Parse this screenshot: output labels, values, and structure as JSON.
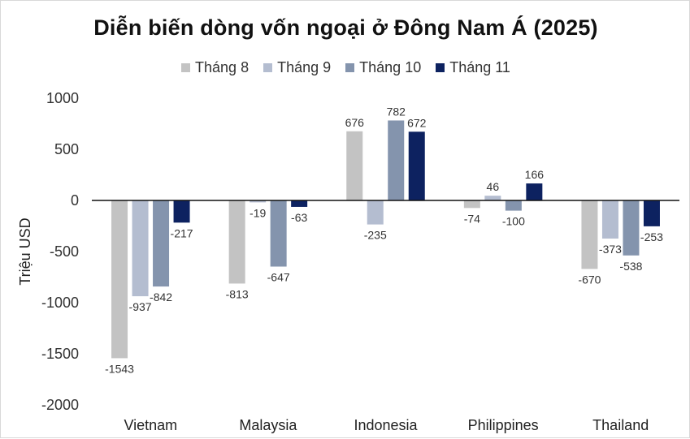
{
  "chart_data": {
    "type": "bar",
    "title": "Diễn biến dòng vốn ngoại ở Đông Nam Á (2025)",
    "ylabel": "Triệu USD",
    "xlabel": "",
    "categories": [
      "Vietnam",
      "Malaysia",
      "Indonesia",
      "Philippines",
      "Thailand"
    ],
    "series": [
      {
        "name": "Tháng 8",
        "color": "#c3c3c3",
        "values": [
          -1543,
          -813,
          676,
          -74,
          -670
        ]
      },
      {
        "name": "Tháng 9",
        "color": "#b4bdd0",
        "values": [
          -937,
          -19,
          -235,
          46,
          -373
        ]
      },
      {
        "name": "Tháng 10",
        "color": "#8494ad",
        "values": [
          -842,
          -647,
          782,
          -100,
          -538
        ]
      },
      {
        "name": "Tháng 11",
        "color": "#0d2260",
        "values": [
          -217,
          -63,
          672,
          166,
          -253
        ]
      }
    ],
    "ylim": [
      -2000,
      1000
    ],
    "yticks": [
      "1000",
      "500",
      "0",
      "-500",
      "-1000",
      "-1500",
      "-2000"
    ],
    "ytick_values": [
      1000,
      500,
      0,
      -500,
      -1000,
      -1500,
      -2000
    ],
    "legend_position": "top",
    "grid": false
  }
}
